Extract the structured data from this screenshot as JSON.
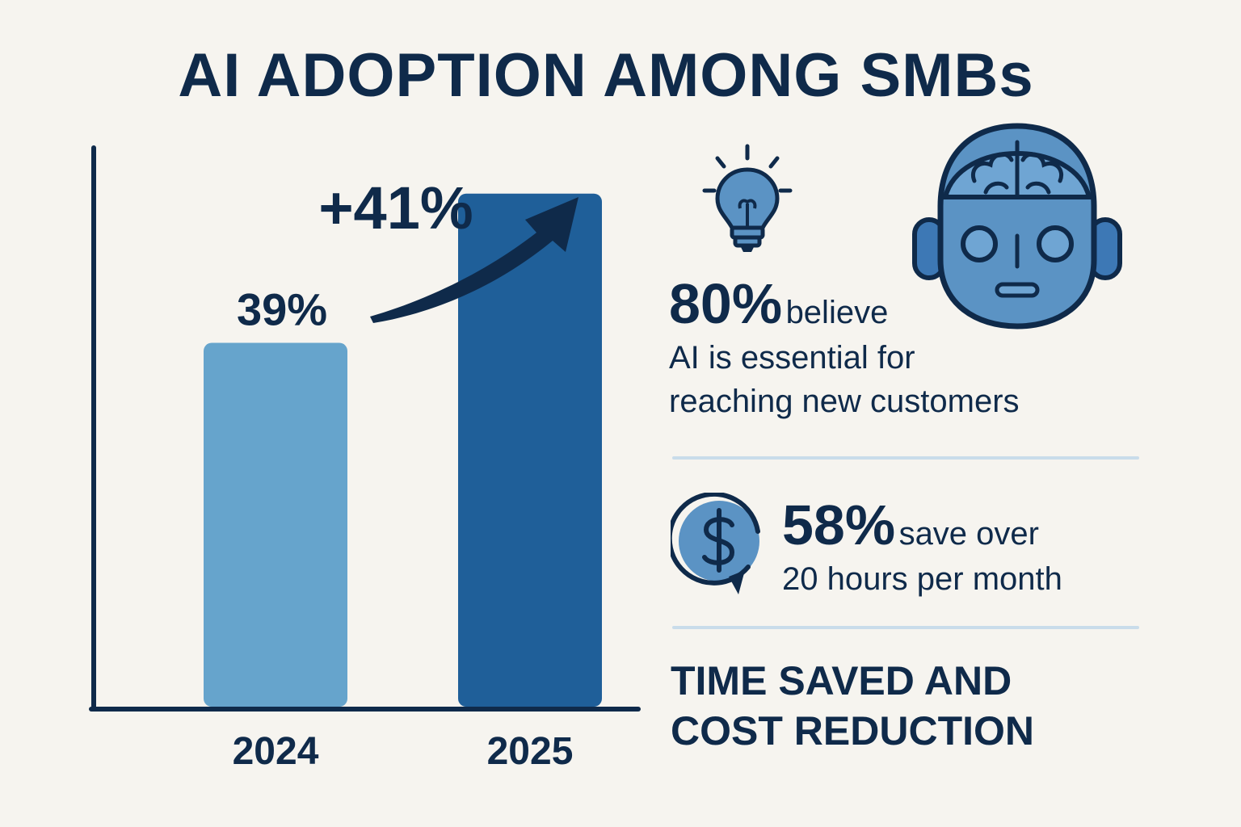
{
  "title": "AI ADOPTION AMONG SMBs",
  "chart_data": {
    "type": "bar",
    "categories": [
      "2024",
      "2025"
    ],
    "values": [
      39,
      55
    ],
    "data_labels": [
      "39%",
      ""
    ],
    "annotation": "+41%",
    "ylim": [
      0,
      100
    ],
    "title": "",
    "xlabel": "",
    "ylabel": "",
    "colors": [
      "#66a4cc",
      "#1f5f99"
    ]
  },
  "stats": {
    "stat1": {
      "value": "80%",
      "lead": "believe",
      "line2": "AI is essential for",
      "line3": "reaching new customers"
    },
    "stat2": {
      "value": "58%",
      "lead": "save over",
      "line2": "20 hours per month"
    }
  },
  "footer": {
    "line1": "TIME SAVED AND",
    "line2": "COST REDUCTION"
  },
  "icons": {
    "lightbulb": "lightbulb-icon",
    "robot": "robot-head-icon",
    "dollar": "dollar-cycle-icon"
  },
  "colors": {
    "navy": "#0f2a4a",
    "light_blue": "#66a4cc",
    "dark_blue": "#1f5f99",
    "icon_fill": "#5b93c4",
    "background": "#f6f4ef"
  }
}
